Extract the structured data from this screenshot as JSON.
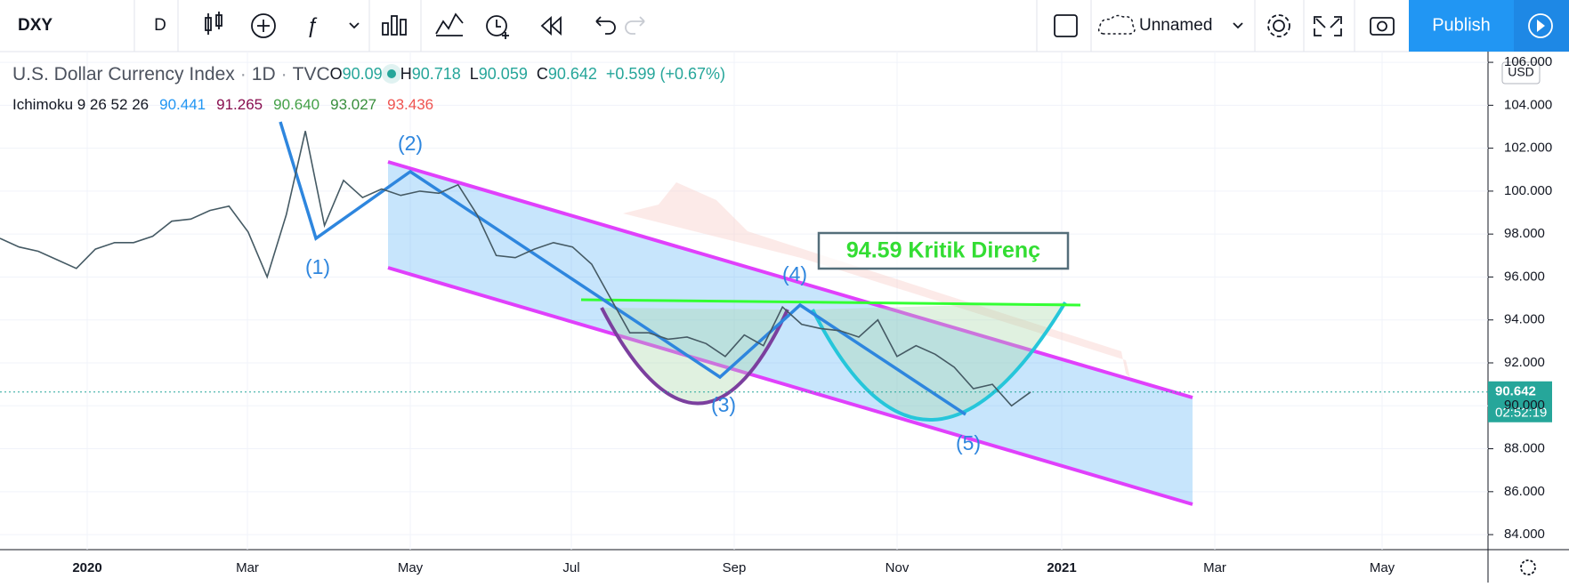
{
  "toolbar": {
    "symbol": "DXY",
    "interval": "D",
    "layout_name": "Unnamed",
    "publish": "Publish"
  },
  "legend": {
    "title": "U.S. Dollar Currency Index",
    "interval": "1D",
    "exchange": "TVC",
    "ohlc": [
      {
        "key": "O",
        "value": "90.090"
      },
      {
        "key": "H",
        "value": "90.718"
      },
      {
        "key": "L",
        "value": "90.059"
      },
      {
        "key": "C",
        "value": "90.642"
      }
    ],
    "change": "+0.599 (+0.67%)",
    "indicator": "Ichimoku 9 26 52 26",
    "indicator_values": [
      {
        "value": "90.441",
        "color": "#2196f3"
      },
      {
        "value": "91.265",
        "color": "#880e4f"
      },
      {
        "value": "90.640",
        "color": "#43a047"
      },
      {
        "value": "93.027",
        "color": "#388e3c"
      },
      {
        "value": "93.436",
        "color": "#ef5350"
      }
    ]
  },
  "chart": {
    "ylim": [
      83.3,
      106.5
    ],
    "yticks": [
      {
        "value": 84,
        "label": "84.000"
      },
      {
        "value": 86,
        "label": "86.000"
      },
      {
        "value": 88,
        "label": "88.000"
      },
      {
        "value": 90,
        "label": "90.000"
      },
      {
        "value": 92,
        "label": "92.000"
      },
      {
        "value": 94,
        "label": "94.000"
      },
      {
        "value": 96,
        "label": "96.000"
      },
      {
        "value": 98,
        "label": "98.000"
      },
      {
        "value": 100,
        "label": "100.000"
      },
      {
        "value": 102,
        "label": "102.000"
      },
      {
        "value": 104,
        "label": "104.000"
      },
      {
        "value": 106,
        "label": "106.000"
      }
    ],
    "time_labels": [
      "2020",
      "Mar",
      "May",
      "Jul",
      "Sep",
      "Nov",
      "2021",
      "Mar",
      "May"
    ],
    "close": [
      97.8,
      97.4,
      97.2,
      96.8,
      96.4,
      97.3,
      97.6,
      97.6,
      97.9,
      98.6,
      98.7,
      99.1,
      99.3,
      98.1,
      96.0,
      98.9,
      102.8,
      98.4,
      100.5,
      99.7,
      100.1,
      99.8,
      100.0,
      99.9,
      100.3,
      98.9,
      97.0,
      96.9,
      97.3,
      97.6,
      97.4,
      96.6,
      95.0,
      93.4,
      93.4,
      93.1,
      93.2,
      92.9,
      92.3,
      93.3,
      92.8,
      94.6,
      93.8,
      93.6,
      93.5,
      93.2,
      94.0,
      92.3,
      92.8,
      92.4,
      91.8,
      90.8,
      91.0,
      90.0,
      90.642
    ],
    "last_price": 90.642,
    "last_price_label": "90.642",
    "countdown": "02:52:19",
    "currency": "USD",
    "annotation": "94.59 Kritik Direnç",
    "waves": [
      "(1)",
      "(2)",
      "(3)",
      "(4)",
      "(5)"
    ]
  }
}
